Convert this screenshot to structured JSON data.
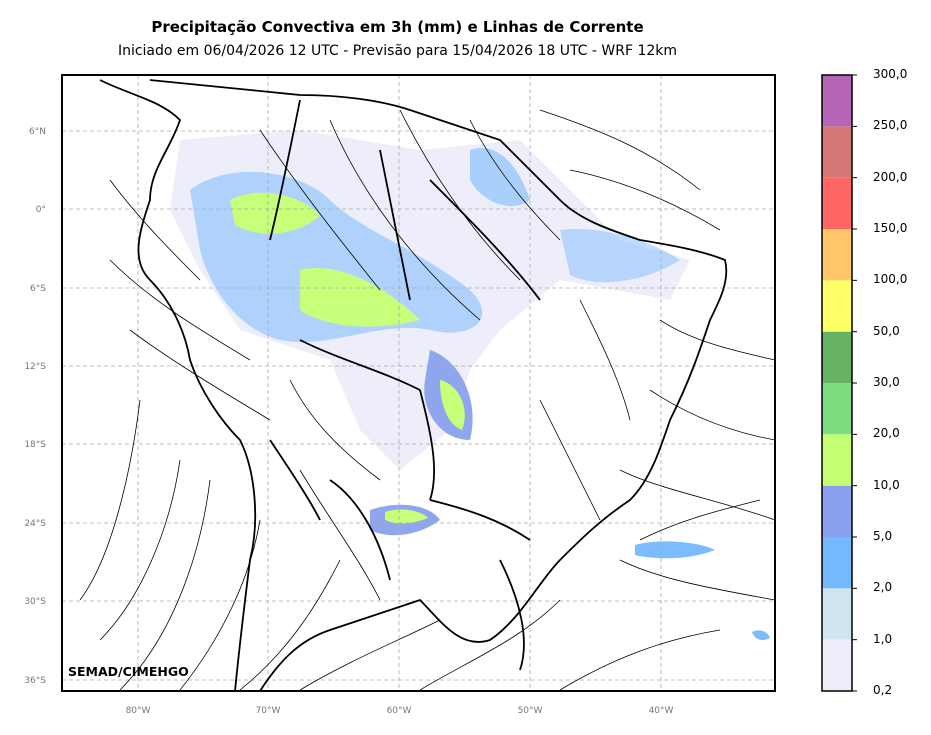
{
  "header": {
    "title": "Precipitação Convectiva em 3h (mm) e Linhas de Corrente",
    "subtitle": "Iniciado em 06/04/2026 12 UTC - Previsão para 15/04/2026 18 UTC - WRF 12km"
  },
  "map": {
    "lat_labels": [
      "6°N",
      "0°",
      "6°S",
      "12°S",
      "18°S",
      "24°S",
      "30°S",
      "36°S"
    ],
    "lon_labels": [
      "80°W",
      "70°W",
      "60°W",
      "50°W",
      "40°W"
    ],
    "credit": "SEMAD/CIMEHGO",
    "grid": "dashed"
  },
  "colorbar": {
    "levels": [
      "0,2",
      "1,0",
      "2,0",
      "5,0",
      "10,0",
      "20,0",
      "30,0",
      "50,0",
      "100,0",
      "150,0",
      "200,0",
      "250,0",
      "300,0"
    ],
    "colors": [
      "#eeeefb",
      "#cfe6ef",
      "#74b8ff",
      "#8aa2ee",
      "#c4ff73",
      "#7edd7e",
      "#66b366",
      "#ffff66",
      "#ffc566",
      "#ff6666",
      "#d57777",
      "#b566b6"
    ]
  }
}
